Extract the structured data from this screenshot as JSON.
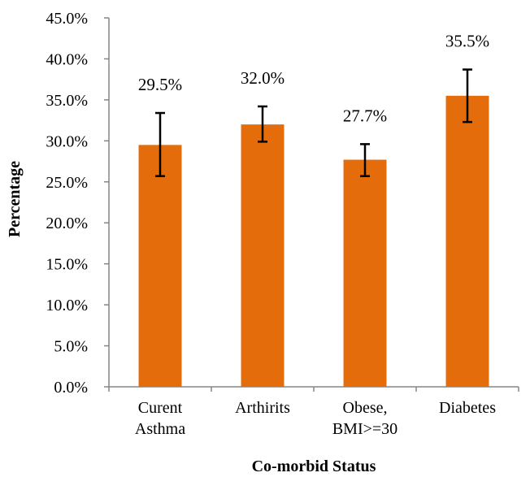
{
  "chart_data": {
    "type": "bar",
    "title": "",
    "xlabel": "Co-morbid Status",
    "ylabel": "Percentage",
    "categories": [
      [
        "Curent",
        "Asthma"
      ],
      [
        "Arthirits"
      ],
      [
        "Obese,",
        "BMI>=30"
      ],
      [
        "Diabetes"
      ]
    ],
    "values": [
      29.5,
      32.0,
      27.7,
      35.5
    ],
    "value_labels": [
      "29.5%",
      "32.0%",
      "27.7%",
      "35.5%"
    ],
    "error_low": [
      25.7,
      29.9,
      25.7,
      32.3
    ],
    "error_high": [
      33.4,
      34.2,
      29.6,
      38.7
    ],
    "ylim": [
      0,
      45
    ],
    "yticks": [
      0,
      5,
      10,
      15,
      20,
      25,
      30,
      35,
      40,
      45
    ],
    "ytick_labels": [
      "0.0%",
      "5.0%",
      "10.0%",
      "15.0%",
      "20.0%",
      "25.0%",
      "30.0%",
      "35.0%",
      "40.0%",
      "45.0%"
    ],
    "grid": false,
    "legend": "none",
    "colors": {
      "bar": "#E46C0A",
      "axis": "#868686",
      "error": "#000000"
    }
  }
}
